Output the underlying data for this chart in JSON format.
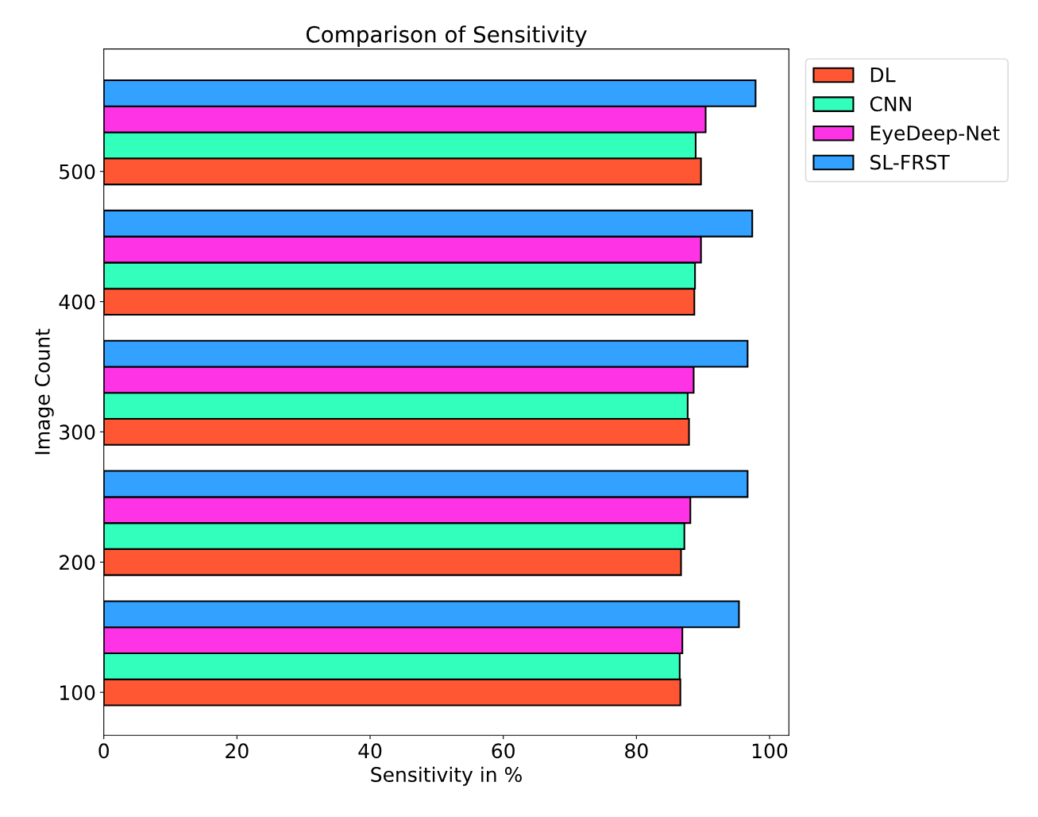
{
  "chart_data": {
    "type": "bar",
    "orientation": "horizontal",
    "title": "Comparison of Sensitivity",
    "xlabel": "Sensitivity in %",
    "ylabel": "Image Count",
    "series": [
      {
        "name": "DL",
        "color": "#ff5733",
        "x": [
          500,
          400,
          300,
          200,
          100
        ],
        "values": [
          89.7,
          88.7,
          87.9,
          86.7,
          86.6
        ]
      },
      {
        "name": "CNN",
        "color": "#33ffbd",
        "x": [
          520,
          420,
          320,
          220,
          120
        ],
        "values": [
          88.9,
          88.8,
          87.7,
          87.2,
          86.5
        ]
      },
      {
        "name": "EyeDeep-Net",
        "color": "#ff33e6",
        "x": [
          540,
          440,
          340,
          240,
          140
        ],
        "values": [
          90.4,
          89.7,
          88.6,
          88.1,
          86.9
        ]
      },
      {
        "name": "SL-FRST",
        "color": "#33a1ff",
        "x": [
          560,
          460,
          360,
          260,
          160
        ],
        "values": [
          97.9,
          97.4,
          96.7,
          96.7,
          95.4
        ]
      }
    ],
    "xlim": [
      0,
      102.9
    ],
    "xticks": [
      0,
      20,
      40,
      60,
      80,
      100
    ],
    "ylim": [
      67,
      594
    ],
    "yticks": [
      100,
      200,
      300,
      400,
      500
    ],
    "grid": false,
    "legend": "top right"
  }
}
